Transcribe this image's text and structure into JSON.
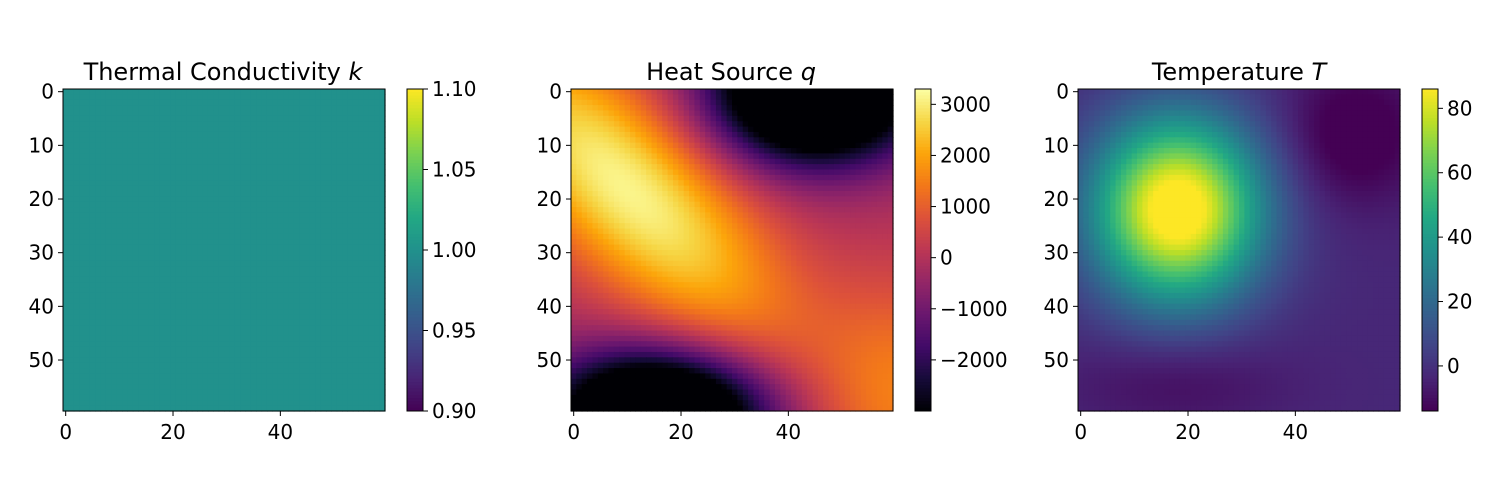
{
  "chart_data": [
    {
      "type": "heatmap",
      "title": "Thermal Conductivity ",
      "title_symbol": "k",
      "colormap": "viridis",
      "grid_size": [
        60,
        60
      ],
      "field": "uniform",
      "value": 1.0,
      "clim": [
        0.9,
        1.1
      ],
      "x_ticks": [
        "0",
        "20",
        "40"
      ],
      "y_ticks": [
        "0",
        "10",
        "20",
        "30",
        "40",
        "50"
      ],
      "colorbar_ticks": [
        {
          "value": 1.1,
          "label": "1.10"
        },
        {
          "value": 1.05,
          "label": "1.05"
        },
        {
          "value": 1.0,
          "label": "1.00"
        },
        {
          "value": 0.95,
          "label": "0.95"
        },
        {
          "value": 0.9,
          "label": "0.90"
        }
      ]
    },
    {
      "type": "heatmap",
      "title": "Heat Source ",
      "title_symbol": "q",
      "colormap": "inferno",
      "grid_size": [
        60,
        60
      ],
      "field": "source",
      "clim": [
        -3000,
        3300
      ],
      "x_ticks": [
        "0",
        "20",
        "40"
      ],
      "y_ticks": [
        "0",
        "10",
        "20",
        "30",
        "40",
        "50"
      ],
      "features": [
        {
          "row": 18,
          "col": 10,
          "value": 3300
        },
        {
          "row": 0,
          "col": 45,
          "value": -3000
        },
        {
          "row": 59,
          "col": 16,
          "value": -3000
        },
        {
          "row": 55,
          "col": 59,
          "value": 800
        }
      ],
      "colorbar_ticks": [
        {
          "value": 3000,
          "label": "3000"
        },
        {
          "value": 2000,
          "label": "2000"
        },
        {
          "value": 1000,
          "label": "1000"
        },
        {
          "value": 0,
          "label": "0"
        },
        {
          "value": -1000,
          "label": "−1000"
        },
        {
          "value": -2000,
          "label": "−2000"
        }
      ]
    },
    {
      "type": "heatmap",
      "title": "Temperature ",
      "title_symbol": "T",
      "colormap": "viridis",
      "grid_size": [
        60,
        60
      ],
      "field": "temperature",
      "clim": [
        -14,
        86
      ],
      "x_ticks": [
        "0",
        "20",
        "40"
      ],
      "y_ticks": [
        "0",
        "10",
        "20",
        "30",
        "40",
        "50"
      ],
      "features": [
        {
          "row": 22,
          "col": 18,
          "value": 85
        },
        {
          "row": 8,
          "col": 51,
          "value": -13
        },
        {
          "row": 54,
          "col": 18,
          "value": -5
        }
      ],
      "colorbar_ticks": [
        {
          "value": 80,
          "label": "80"
        },
        {
          "value": 60,
          "label": "60"
        },
        {
          "value": 40,
          "label": "40"
        },
        {
          "value": 20,
          "label": "20"
        },
        {
          "value": 0,
          "label": "0"
        }
      ]
    }
  ]
}
